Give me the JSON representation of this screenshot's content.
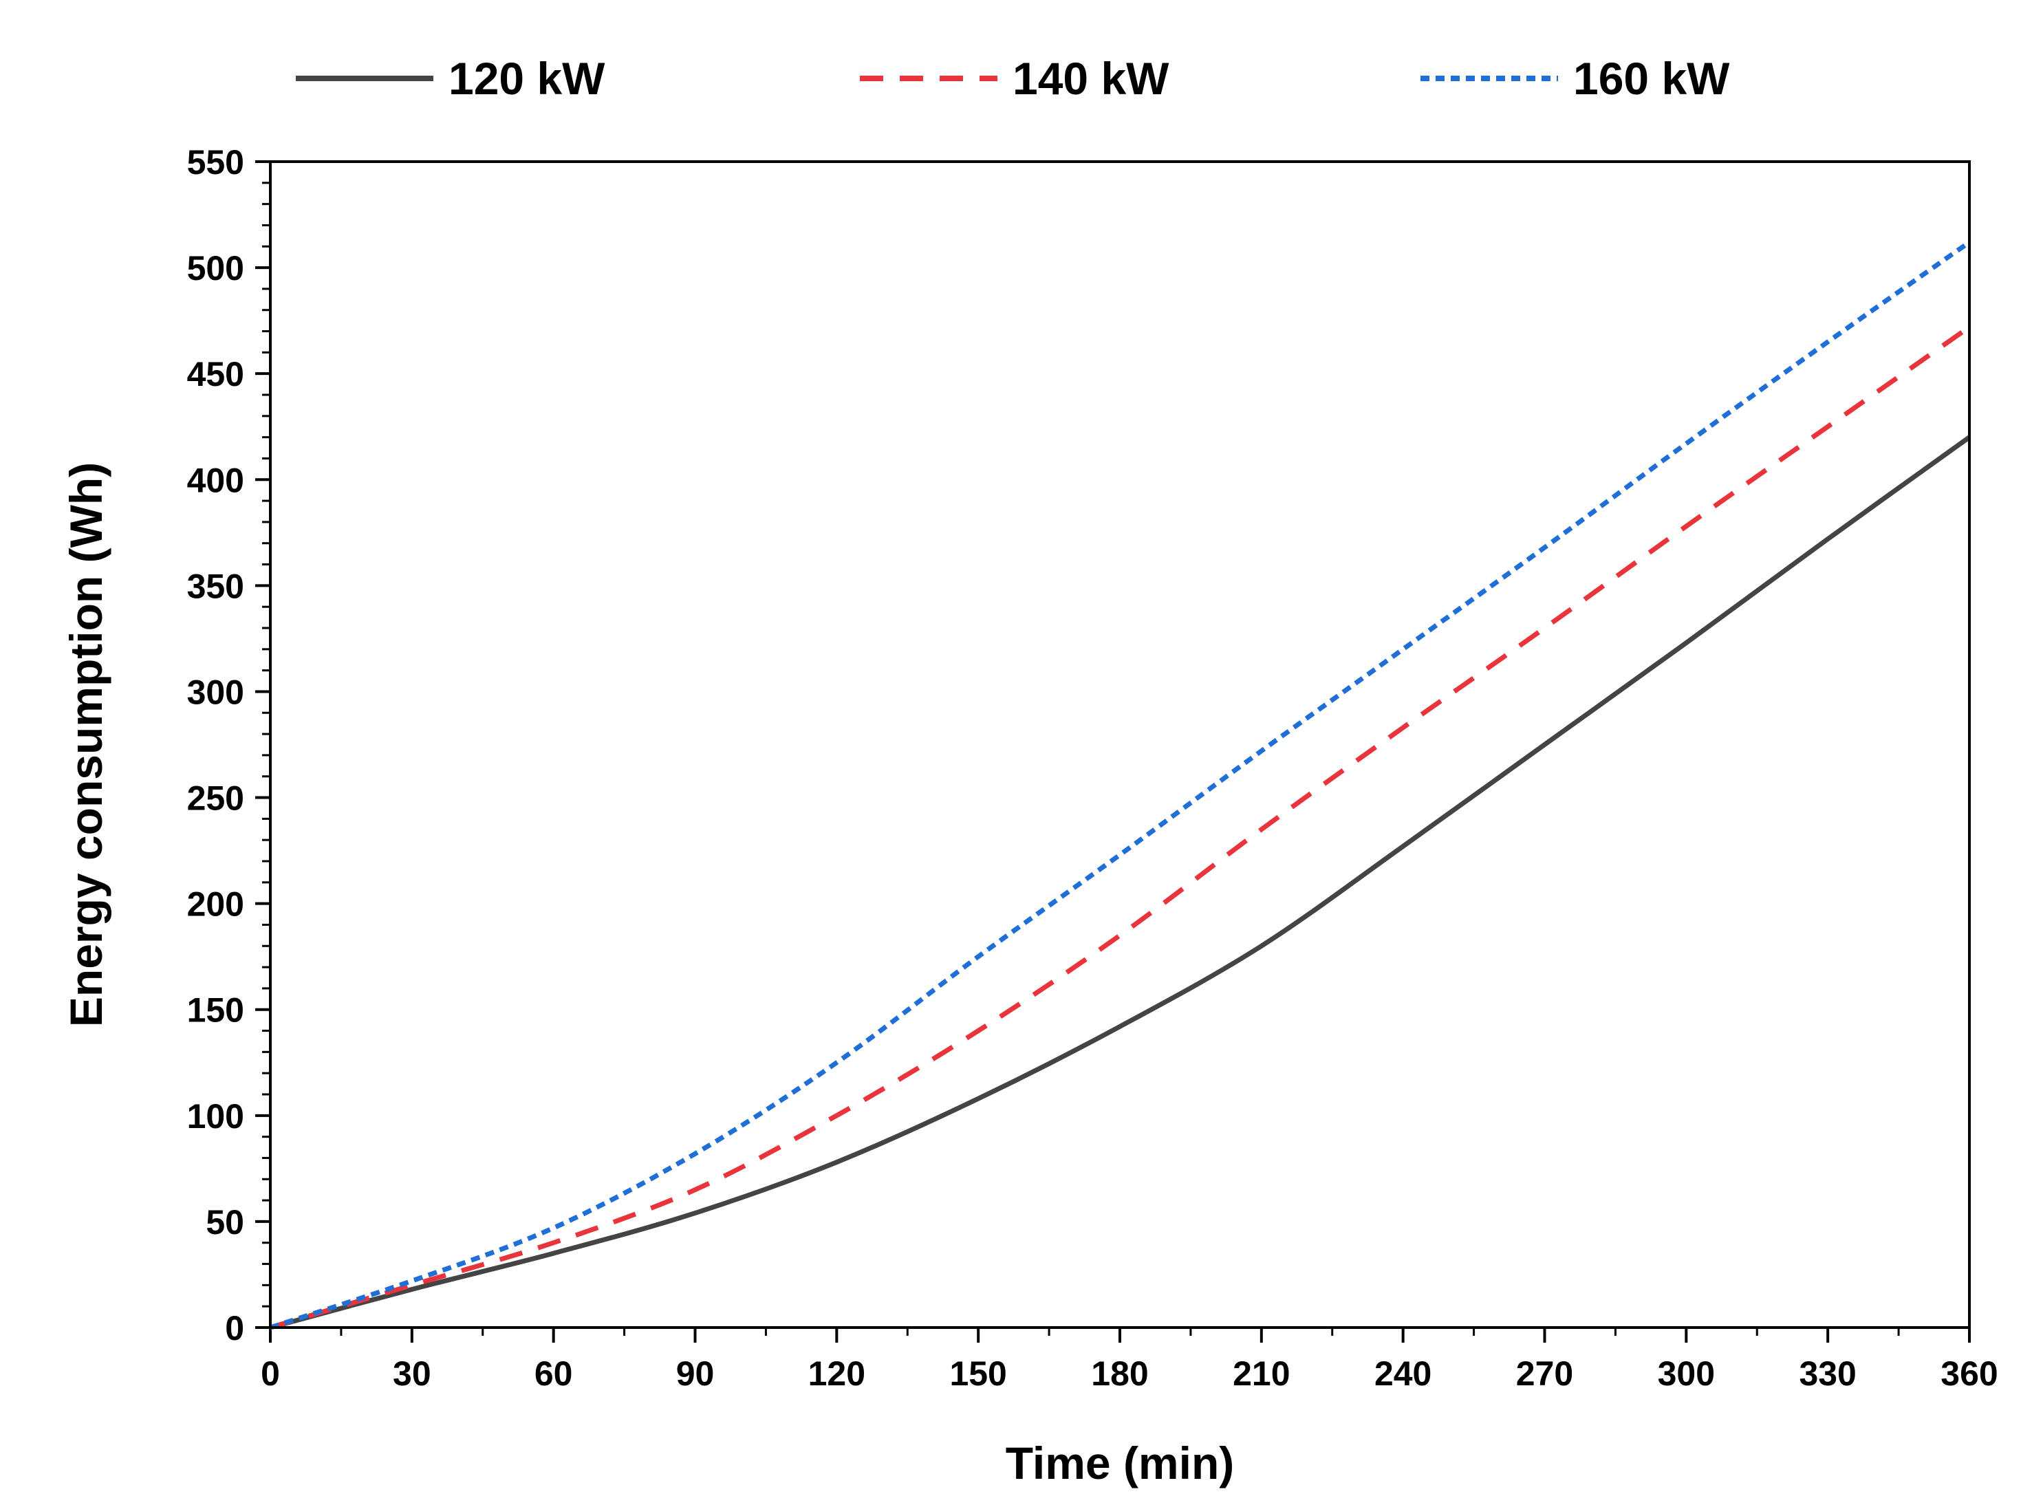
{
  "chart_data": {
    "type": "line",
    "title": "",
    "xlabel": "Time (min)",
    "ylabel": "Energy consumption (Wh)",
    "xlim": [
      0,
      360
    ],
    "ylim": [
      0,
      550
    ],
    "xticks": [
      0,
      30,
      60,
      90,
      120,
      150,
      180,
      210,
      240,
      270,
      300,
      330,
      360
    ],
    "yticks": [
      0,
      50,
      100,
      150,
      200,
      250,
      300,
      350,
      400,
      450,
      500,
      550
    ],
    "grid": false,
    "legend_position": "top",
    "series": [
      {
        "name": "120 kW",
        "color": "#444444",
        "style": "solid",
        "x": [
          0,
          30,
          60,
          90,
          120,
          150,
          180,
          210,
          240,
          270,
          300,
          330,
          360
        ],
        "y": [
          0,
          18,
          35,
          54,
          78,
          108,
          142,
          180,
          227,
          275,
          323,
          372,
          420
        ]
      },
      {
        "name": "140 kW",
        "color": "#e8343a",
        "style": "dashed",
        "x": [
          0,
          30,
          60,
          90,
          120,
          150,
          180,
          210,
          240,
          270,
          300,
          330,
          360
        ],
        "y": [
          0,
          20,
          40,
          65,
          100,
          140,
          185,
          235,
          283,
          330,
          378,
          425,
          472
        ]
      },
      {
        "name": "160 kW",
        "color": "#1f6fd6",
        "style": "dotted",
        "x": [
          0,
          30,
          60,
          90,
          120,
          150,
          180,
          210,
          240,
          270,
          300,
          330,
          360
        ],
        "y": [
          0,
          22,
          47,
          82,
          125,
          175,
          223,
          272,
          320,
          368,
          417,
          465,
          512
        ]
      }
    ]
  }
}
